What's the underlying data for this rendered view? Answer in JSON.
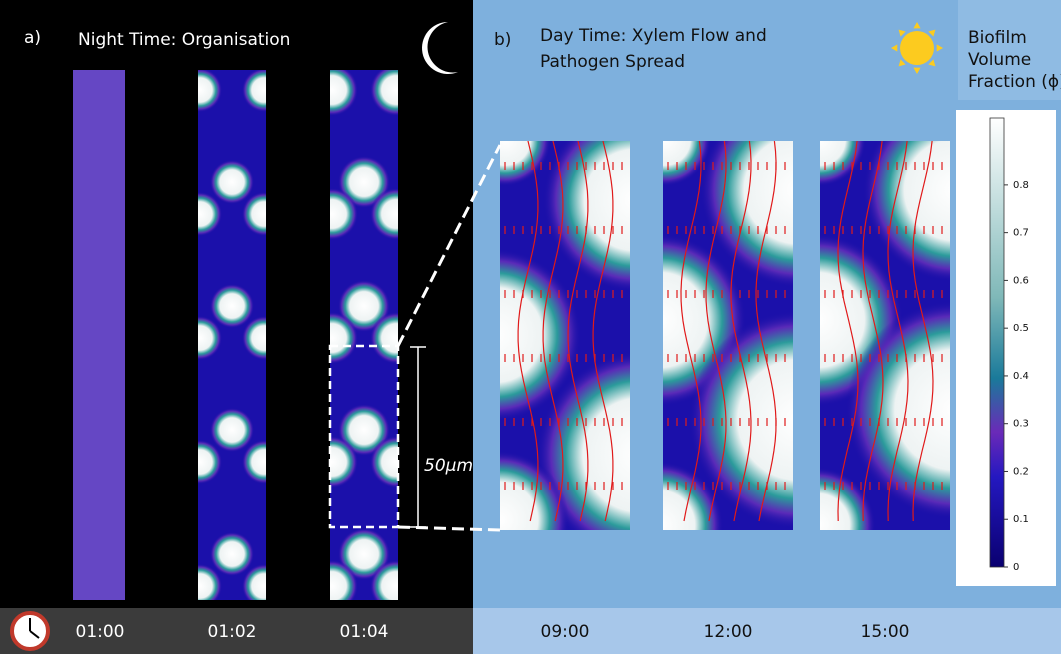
{
  "panel_a": {
    "label": "a)",
    "title": "Night Time: Organisation",
    "times": [
      "01:00",
      "01:02",
      "01:04"
    ]
  },
  "panel_b": {
    "label": "b)",
    "title_lines": [
      "Day Time: Xylem Flow and",
      "Pathogen Spread"
    ],
    "times": [
      "09:00",
      "12:00",
      "15:00"
    ]
  },
  "colorbar": {
    "title_lines": [
      "Biofilm",
      "Volume",
      "Fraction (ϕ)"
    ],
    "lim": [
      0,
      0.94
    ],
    "ticks": [
      0,
      0.1,
      0.2,
      0.3,
      0.4,
      0.5,
      0.6,
      0.7,
      0.8
    ]
  },
  "scale_bar": {
    "label": "50μm"
  }
}
